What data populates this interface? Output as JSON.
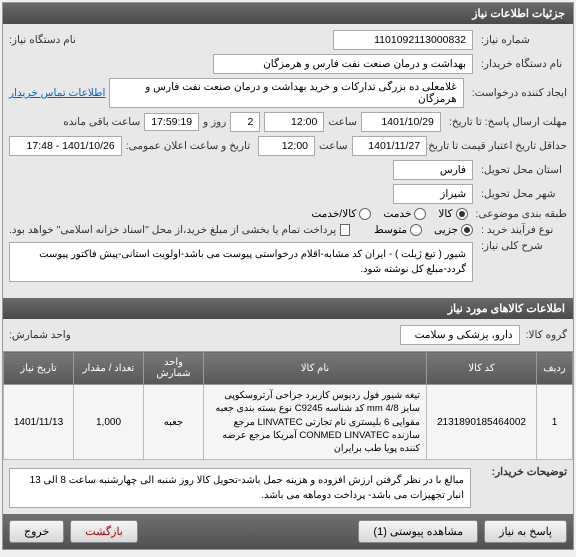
{
  "panel_title": "جزئیات اطلاعات نیاز",
  "fields": {
    "need_number_label": "شماره نیاز:",
    "need_number": "1101092113000832",
    "device_name_label": "نام دستگاه نیاز:",
    "buyer_name_label": "نام دستگاه خریدار:",
    "buyer_name": "بهداشت و درمان صنعت نفت فارس و هرمزگان",
    "creator_label": "ایجاد کننده درخواست:",
    "creator": "غلامعلی ده بزرگی تدارکات و خرید بهداشت و درمان صنعت نفت فارس و هرمزگان",
    "contact_link": "اطلاعات تماس خریدار",
    "deadline_label": "مهلت ارسال پاسخ: تا تاریخ:",
    "deadline_date": "1401/10/29",
    "time_label": "ساعت",
    "deadline_time": "12:00",
    "days_label": "روز و",
    "days_value": "2",
    "countdown": "17:59:19",
    "remaining_label": "ساعت باقی مانده",
    "credit_label": "حداقل تاریخ اعتبار قیمت تا تاریخ:",
    "credit_date": "1401/11/27",
    "credit_time": "12:00",
    "announce_label": "تاریخ و ساعت اعلان عمومی:",
    "announce_value": "1401/10/26 - 17:48",
    "province_label": "استان محل تحویل:",
    "province": "فارس",
    "city_label": "شهر محل تحویل:",
    "city": "شیراز",
    "package_label": "طبقه بندی موضوعی:",
    "pkg_opt_goods": "کالا",
    "pkg_opt_service": "خدمت",
    "pkg_opt_both": "کالا/خدمت",
    "process_label": "نوع فرآیند خرید :",
    "proc_opt_small": "جزیی",
    "proc_opt_medium": "متوسط",
    "pay_note": "پرداخت تمام یا بخشی از مبلغ خرید،از محل \"اسناد خزانه اسلامی\" خواهد بود.",
    "main_desc_label": "شرح کلی نیاز:",
    "main_desc": "شیور ( تیغ ژیلت ) - ایران کد مشابه-اقلام درخواستی پیوست می باشد-اولویت استانی-پیش فاکتور پیوست گردد-مبلغ کل نوشته شود.",
    "section2_title": "اطلاعات کالاهای مورد نیاز",
    "group_label": "گروه کالا:",
    "group_value": "دارو، پزشکی و سلامت",
    "sub_label": "واحد شمارش:",
    "col_row": "ردیف",
    "col_code": "کد کالا",
    "col_name": "نام کالا",
    "col_unit": "واحد شمارش",
    "col_qty": "تعداد / مقدار",
    "col_date": "تاریخ نیاز",
    "rows": [
      {
        "n": "1",
        "code": "2131890185464002",
        "name": "تیغه شیور فول ردیوس کاربرد جراحی آرتروسکوپی سایز 4/8 mm کد شناسه C9245 نوع بسته بندی جعبه مقوایی 6 بلیستری نام تجارتی LINVATEC مرجع سازنده CONMED LINVATEC آمریکا مرجع عرضه کننده پویا طب برایران",
        "unit": "جعبه",
        "qty": "1,000",
        "date": "1401/11/13"
      }
    ],
    "buyer_note_label": "توضیحات خریدار:",
    "buyer_note": "مبالغ با در نظر گرفتن ارزش افزوده و هزینه حمل باشد-تحویل کالا روز شنبه الی چهارشنبه ساعت 8 الی 13 انبار تجهیزات می باشد- پرداخت دوماهه می باشد.",
    "btn_reply": "پاسخ به نیاز",
    "btn_attach": "مشاهده پیوستی (1)",
    "btn_back": "بازگشت",
    "btn_exit": "خروج"
  }
}
